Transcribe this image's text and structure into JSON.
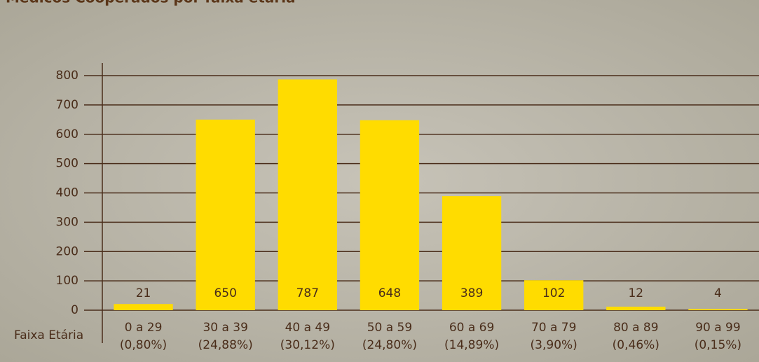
{
  "chart_data": {
    "type": "bar",
    "title": "Médicos Cooperados por faixa etária",
    "x_label": "Faixa Etária",
    "categories": [
      "0 a 29",
      "30 a 39",
      "40 a 49",
      "50 a 59",
      "60 a 69",
      "70 a 79",
      "80 a 89",
      "90 a 99"
    ],
    "category_shares": [
      "(0,80%)",
      "(24,88%)",
      "(30,12%)",
      "(24,80%)",
      "(14,89%)",
      "(3,90%)",
      "(0,46%)",
      "(0,15%)"
    ],
    "values": [
      21,
      650,
      787,
      648,
      389,
      102,
      12,
      4
    ],
    "color": "#ffdc00",
    "ylim": [
      0,
      800
    ],
    "yticks": [
      0,
      100,
      200,
      300,
      400,
      500,
      600,
      700,
      800
    ],
    "grid": true
  }
}
